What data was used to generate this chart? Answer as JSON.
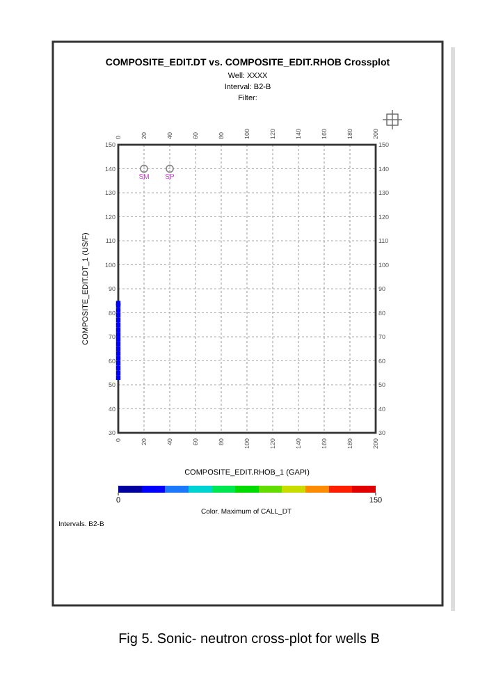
{
  "chart_data": {
    "type": "scatter",
    "title": "COMPOSITE_EDIT.DT vs. COMPOSITE_EDIT.RHOB Crossplot",
    "subtitle": "Well: XXXX\nInterval: B2-B\nFilter:",
    "xlabel": "COMPOSITE_EDIT.RHOB_1 (GAPI)",
    "ylabel": "COMPOSITE_EDIT.DT_1 (US/F)",
    "clabel": "Color. Maximum of CALL_DT",
    "annotations": [
      "Intervals. B2-B",
      "Fig 5. Sonic- neutron cross-plot for wells B"
    ],
    "xlim": [
      0,
      200
    ],
    "xticks": [
      0,
      20,
      40,
      60,
      80,
      100,
      120,
      140,
      160,
      180,
      200
    ],
    "x2lim": [
      0,
      200
    ],
    "x2ticks": [
      0,
      20,
      40,
      60,
      80,
      100,
      120,
      140,
      160,
      180,
      200
    ],
    "ylim": [
      30,
      150
    ],
    "yticks": [
      30,
      40,
      50,
      60,
      70,
      80,
      90,
      100,
      110,
      120,
      130,
      140,
      150
    ],
    "y2lim": [
      30,
      150
    ],
    "y2ticks": [
      30,
      40,
      50,
      60,
      70,
      80,
      90,
      100,
      110,
      120,
      130,
      140,
      150
    ],
    "clim": [
      0,
      150
    ],
    "cticks": [
      0,
      150
    ],
    "grid": true,
    "series": [
      {
        "marker": "square",
        "x": [
          0,
          0,
          0,
          0,
          0,
          0,
          0,
          0,
          0,
          0,
          0,
          0,
          0,
          0,
          0,
          0,
          0
        ],
        "values": [
          53,
          55,
          57,
          59,
          61,
          63,
          65,
          67,
          69,
          71,
          73,
          75,
          77,
          79,
          81,
          83,
          84
        ],
        "cvalues": [
          15,
          15,
          15,
          15,
          15,
          15,
          15,
          15,
          15,
          15,
          15,
          15,
          15,
          15,
          15,
          15,
          15
        ]
      },
      {
        "marker": "circle",
        "color": "#888888",
        "x": [
          20,
          40
        ],
        "values": [
          140,
          140
        ],
        "value_labels": [
          "SM",
          "SP"
        ]
      }
    ]
  }
}
